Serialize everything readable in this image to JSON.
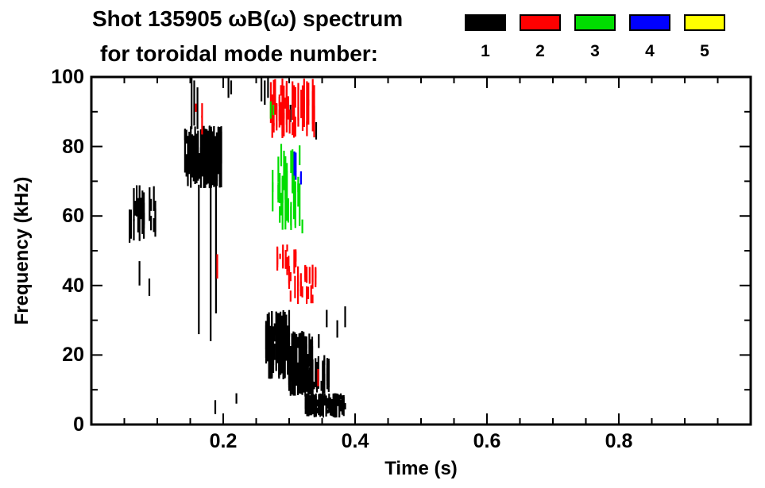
{
  "figure": {
    "title_line1": "Shot 135905 ωB(ω) spectrum",
    "title_line2": "for toroidal mode number:"
  },
  "legend": {
    "items": [
      {
        "label": "1",
        "color": "#000000"
      },
      {
        "label": "2",
        "color": "#ff0000"
      },
      {
        "label": "3",
        "color": "#00dd00"
      },
      {
        "label": "4",
        "color": "#0000ff"
      },
      {
        "label": "5",
        "color": "#ffff00"
      }
    ]
  },
  "chart_data": {
    "type": "scatter",
    "title": "Shot 135905 ωB(ω) spectrum for toroidal mode number",
    "xlabel": "Time (s)",
    "ylabel": "Frequency (kHz)",
    "xlim": [
      0.0,
      1.0
    ],
    "ylim": [
      0,
      100
    ],
    "xticks": [
      0.2,
      0.4,
      0.6,
      0.8
    ],
    "xtick_labels": [
      "0.2",
      "0.4",
      "0.6",
      "0.8"
    ],
    "yticks": [
      0,
      20,
      40,
      60,
      80,
      100
    ],
    "ytick_labels": [
      "0",
      "20",
      "40",
      "60",
      "80",
      "100"
    ],
    "x_minor": 0.05,
    "y_minor": 10,
    "grid": false,
    "legend_position": "top-right",
    "series": [
      {
        "name": "n=1",
        "mode_number": 1,
        "color": "#000000",
        "regions": [
          {
            "t": [
              0.058,
              0.097
            ],
            "f": [
              52,
              69
            ],
            "d": 0.5
          },
          {
            "t": [
              0.142,
              0.197
            ],
            "f": [
              68,
              86
            ],
            "d": 1.0
          },
          {
            "t": [
              0.265,
              0.3
            ],
            "f": [
              13,
              33
            ],
            "d": 1.0
          },
          {
            "t": [
              0.3,
              0.335
            ],
            "f": [
              12,
              27
            ],
            "d": 1.0
          },
          {
            "t": [
              0.3,
              0.36
            ],
            "f": [
              8,
              20
            ],
            "d": 0.85
          },
          {
            "t": [
              0.325,
              0.385
            ],
            "f": [
              2,
              9
            ],
            "d": 1.0
          }
        ],
        "dashes": [
          [
            0.073,
            40,
            47
          ],
          [
            0.088,
            37,
            42
          ],
          [
            0.152,
            85,
            100
          ],
          [
            0.156,
            86,
            99
          ],
          [
            0.161,
            85,
            97
          ],
          [
            0.163,
            26,
            69
          ],
          [
            0.181,
            24,
            69
          ],
          [
            0.189,
            32,
            69
          ],
          [
            0.188,
            3,
            7
          ],
          [
            0.208,
            94,
            100
          ],
          [
            0.212,
            95,
            99
          ],
          [
            0.22,
            6,
            9
          ],
          [
            0.258,
            93,
            100
          ],
          [
            0.263,
            92,
            99
          ],
          [
            0.268,
            94,
            100
          ],
          [
            0.302,
            87,
            92
          ],
          [
            0.341,
            82,
            87
          ],
          [
            0.345,
            22,
            26
          ],
          [
            0.357,
            28,
            33
          ],
          [
            0.373,
            25,
            30
          ],
          [
            0.385,
            28,
            34
          ]
        ]
      },
      {
        "name": "n=2",
        "mode_number": 2,
        "color": "#ff0000",
        "regions": [
          {
            "t": [
              0.156,
              0.168
            ],
            "f": [
              82,
              96
            ],
            "d": 0.5
          },
          {
            "t": [
              0.27,
              0.338
            ],
            "f": [
              82,
              100
            ],
            "d": 0.7
          },
          {
            "t": [
              0.282,
              0.312
            ],
            "f": [
              42,
              52
            ],
            "d": 0.65
          },
          {
            "t": [
              0.3,
              0.34
            ],
            "f": [
              34,
              46
            ],
            "d": 0.55
          }
        ],
        "dashes": [
          [
            0.191,
            42,
            49
          ],
          [
            0.344,
            11,
            16
          ]
        ]
      },
      {
        "name": "n=3",
        "mode_number": 3,
        "color": "#00dd00",
        "regions": [
          {
            "t": [
              0.275,
              0.318
            ],
            "f": [
              55,
              81
            ],
            "d": 0.5
          }
        ],
        "dashes": [
          [
            0.272,
            88,
            93
          ],
          [
            0.276,
            89,
            92
          ],
          [
            0.32,
            55,
            59
          ]
        ]
      },
      {
        "name": "n=4",
        "mode_number": 4,
        "color": "#0000ff",
        "regions": [
          {
            "t": [
              0.308,
              0.318
            ],
            "f": [
              68,
              80
            ],
            "d": 0.55
          }
        ],
        "dashes": []
      },
      {
        "name": "n=5",
        "mode_number": 5,
        "color": "#ffff00",
        "regions": [],
        "dashes": []
      }
    ]
  }
}
